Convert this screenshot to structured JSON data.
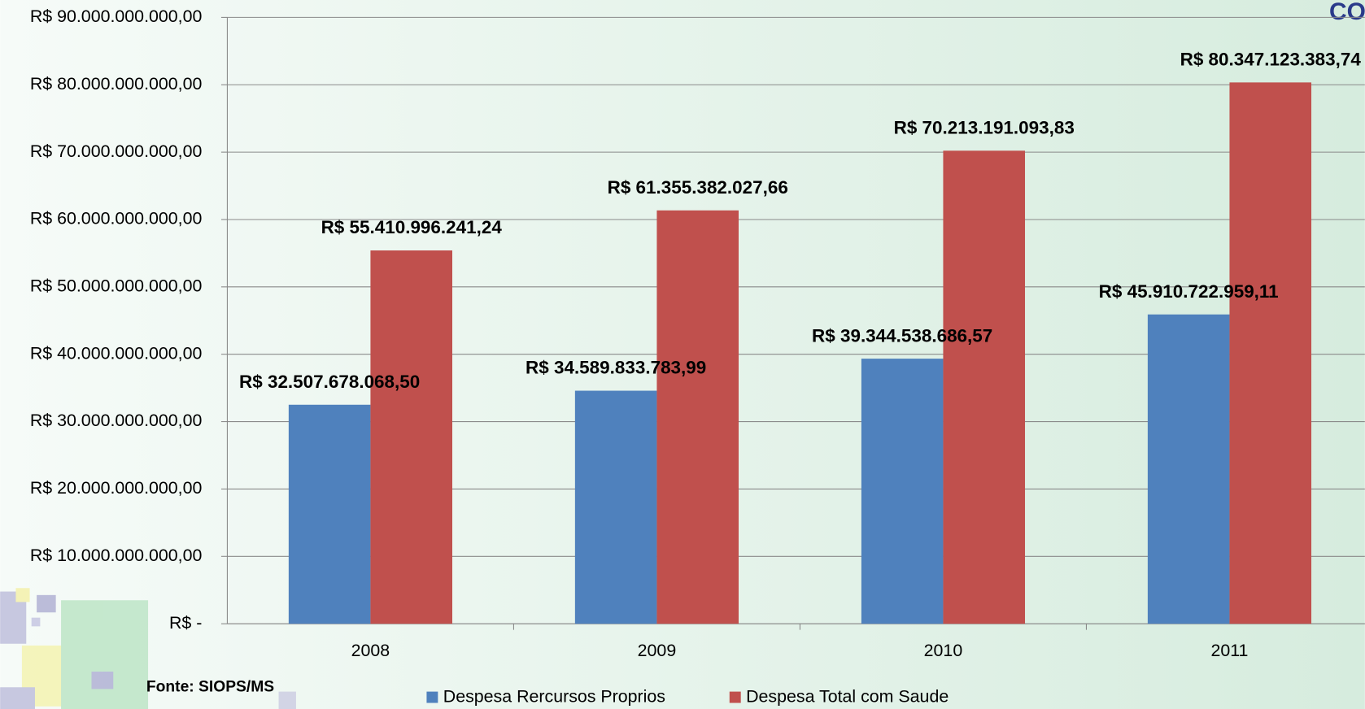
{
  "chart_data": {
    "type": "bar",
    "categories": [
      "2008",
      "2009",
      "2010",
      "2011"
    ],
    "series": [
      {
        "name": "Despesa Rercursos Proprios",
        "color": "#4f81bd",
        "values": [
          32507678068.5,
          34589833783.99,
          39344538686.57,
          45910722959.11
        ],
        "value_labels": [
          "R$ 32.507.678.068,50",
          "R$ 34.589.833.783,99",
          "R$ 39.344.538.686,57",
          "R$ 45.910.722.959,11"
        ]
      },
      {
        "name": "Despesa Total com Saude",
        "color": "#c0504d",
        "values": [
          55410996241.24,
          61355382027.66,
          70213191093.83,
          80347123383.74
        ],
        "value_labels": [
          "R$ 55.410.996.241,24",
          "R$ 61.355.382.027,66",
          "R$ 70.213.191.093,83",
          "R$ 80.347.123.383,74"
        ]
      }
    ],
    "ylim": [
      0,
      90000000000
    ],
    "yticks": [
      {
        "value": 0,
        "label": "R$ -"
      },
      {
        "value": 10000000000,
        "label": "R$ 10.000.000.000,00"
      },
      {
        "value": 20000000000,
        "label": "R$ 20.000.000.000,00"
      },
      {
        "value": 30000000000,
        "label": "R$ 30.000.000.000,00"
      },
      {
        "value": 40000000000,
        "label": "R$ 40.000.000.000,00"
      },
      {
        "value": 50000000000,
        "label": "R$ 50.000.000.000,00"
      },
      {
        "value": 60000000000,
        "label": "R$ 60.000.000.000,00"
      },
      {
        "value": 70000000000,
        "label": "R$ 70.000.000.000,00"
      },
      {
        "value": 80000000000,
        "label": "R$ 80.000.000.000,00"
      },
      {
        "value": 90000000000,
        "label": "R$ 90.000.000.000,00"
      }
    ],
    "grid": true,
    "legend": "bottom",
    "source": "Fonte: SIOPS/MS",
    "logo": "CO"
  }
}
